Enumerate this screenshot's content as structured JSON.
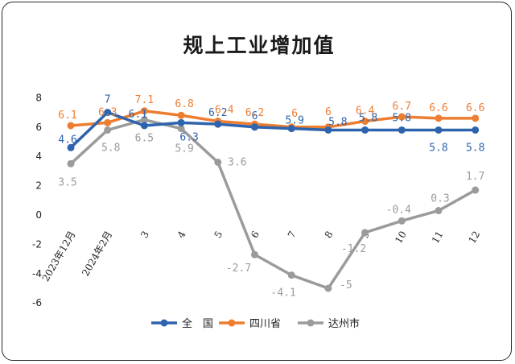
{
  "chart_data": {
    "type": "line",
    "title": "规上工业增加值",
    "xlabel": "",
    "ylabel": "",
    "categories": [
      "2023年12月",
      "2024年2月",
      "3",
      "4",
      "5",
      "6",
      "7",
      "8",
      "9",
      "10",
      "11",
      "12"
    ],
    "ylim": [
      -6,
      8
    ],
    "yticks": [
      8,
      6,
      4,
      2,
      0,
      -2,
      -4,
      -6
    ],
    "grid": false,
    "legend_position": "bottom",
    "series": [
      {
        "name": "全　国",
        "color": "#2e64ad",
        "values": [
          4.6,
          7,
          6.1,
          6.3,
          6.2,
          6,
          5.9,
          5.8,
          5.8,
          5.8,
          5.8,
          5.8
        ],
        "labels": [
          "4.6",
          "7",
          "6.1",
          "6.3",
          "6.2",
          "6",
          "5.9",
          "5.8",
          "5.8",
          "5.8",
          "5.8",
          "5.8"
        ]
      },
      {
        "name": "四川省",
        "color": "#ed7d31",
        "values": [
          6.1,
          6.3,
          7.1,
          6.8,
          6.4,
          6.2,
          6,
          6,
          6.4,
          6.7,
          6.6,
          6.6
        ],
        "labels": [
          "6.1",
          "6.3",
          "7.1",
          "6.8",
          "6.4",
          "6.2",
          "6",
          "6",
          "6.4",
          "6.7",
          "6.6",
          "6.6"
        ]
      },
      {
        "name": "达州市",
        "color": "#9b9b9b",
        "values": [
          3.5,
          5.8,
          6.5,
          5.9,
          3.6,
          -2.7,
          -4.1,
          -5,
          -1.2,
          -0.4,
          0.3,
          1.7
        ],
        "labels": [
          "3.5",
          "5.8",
          "6.5",
          "5.9",
          "3.6",
          "-2.7",
          "-4.1",
          "-5",
          "-1.2",
          "-0.4",
          "0.3",
          "1.7"
        ]
      }
    ]
  }
}
